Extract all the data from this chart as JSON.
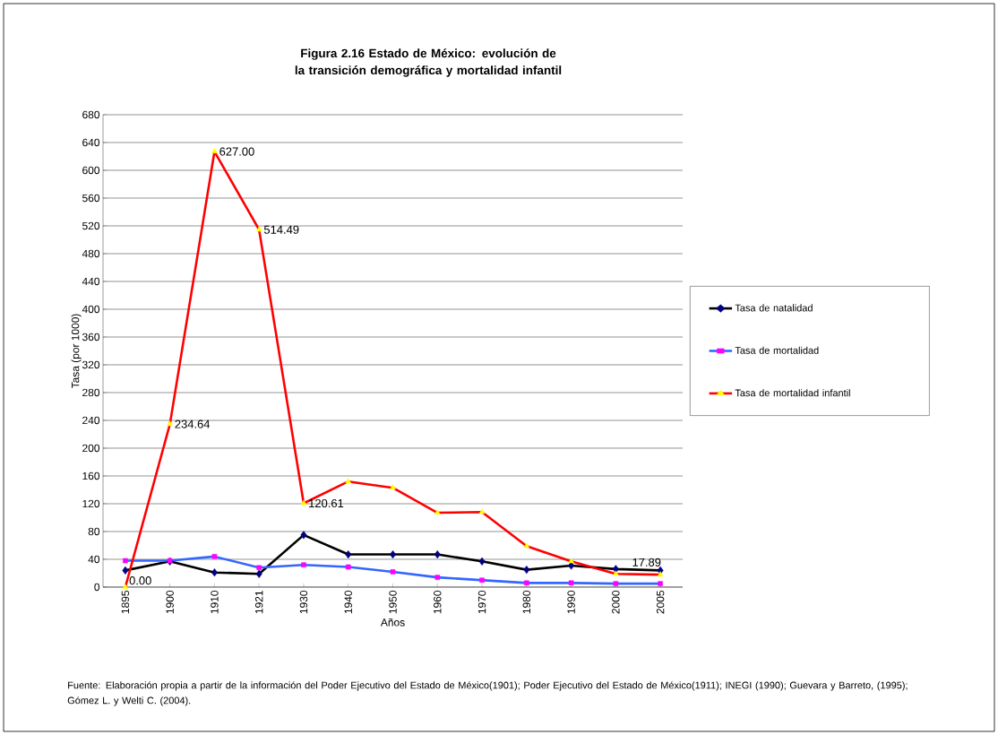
{
  "chart_data": {
    "type": "line",
    "title": "Figura 2.16 Estado de México: evolución de la transición demográfica y mortalidad infantil",
    "xlabel": "Años",
    "ylabel": "Tasa (por 1000)",
    "categories": [
      "1895",
      "1900",
      "1910",
      "1921",
      "1930",
      "1940",
      "1950",
      "1960",
      "1970",
      "1980",
      "1990",
      "2000",
      "2005"
    ],
    "series": [
      {
        "name": "Tasa de natalidad",
        "color": "#000000",
        "marker": "diamond",
        "values": [
          24,
          37,
          21,
          19,
          75,
          47,
          47,
          47,
          37,
          25,
          31,
          26,
          24
        ]
      },
      {
        "name": "Tasa de mortalidad",
        "color": "#3366ff",
        "marker": "square",
        "values": [
          38,
          38,
          44,
          28,
          32,
          29,
          22,
          14,
          10,
          6,
          6,
          5,
          5
        ]
      },
      {
        "name": "Tasa de mortalidad infantil",
        "color": "#ff0000",
        "marker": "triangle",
        "values": [
          0,
          234.64,
          627,
          514.49,
          120.61,
          152,
          143,
          107,
          108,
          59,
          37,
          19,
          17.89
        ],
        "value_labels": [
          "0.00",
          "234.64",
          "627.00",
          "514.49",
          "120.61",
          null,
          null,
          null,
          null,
          null,
          null,
          null,
          "17.89"
        ]
      }
    ],
    "ylim": [
      0,
      680
    ],
    "yticks": [
      0,
      40,
      80,
      120,
      160,
      200,
      240,
      280,
      320,
      360,
      400,
      440,
      480,
      520,
      560,
      600,
      640,
      680
    ],
    "grid": "y",
    "legend": "right",
    "line_style": "solid",
    "annotations": [
      "Fuente: Elaboración propia a partir de la información del Poder Ejecutivo del Estado de México(1901); Poder Ejecutivo del Estado de México(1911); INEGI (1990); Guevara y Barreto, (1995); Gómez L. y Welti C. (2004)."
    ]
  }
}
